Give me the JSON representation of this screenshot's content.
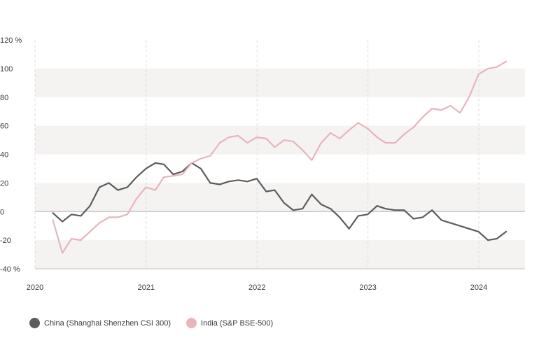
{
  "chart_data": {
    "type": "line",
    "y_unit": "%",
    "ylim": [
      -40,
      120
    ],
    "yticks": [
      -40,
      -20,
      0,
      20,
      40,
      60,
      80,
      100,
      120
    ],
    "ytick_labels": [
      "-40 %",
      "-20",
      "0",
      "20",
      "40",
      "60",
      "80",
      "100",
      "120 %"
    ],
    "xlim": [
      "2020-01-01",
      "2024-06-01"
    ],
    "xticks": [
      "2020-01-01",
      "2021-01-01",
      "2022-01-01",
      "2023-01-01",
      "2024-01-01"
    ],
    "xtick_labels": [
      "2020",
      "2021",
      "2022",
      "2023",
      "2024"
    ],
    "grid": "alternating horizontal bands, dashed vertical lines at years",
    "legend_position": "bottom-left",
    "colors": {
      "band": "#f4f3f1",
      "zero_line": "#c9c6c2",
      "year_grid": "#dddddd"
    },
    "x": [
      "2020-02-29",
      "2020-03-31",
      "2020-04-30",
      "2020-05-31",
      "2020-06-30",
      "2020-07-31",
      "2020-08-31",
      "2020-09-30",
      "2020-10-31",
      "2020-11-30",
      "2020-12-31",
      "2021-01-31",
      "2021-02-28",
      "2021-03-31",
      "2021-04-30",
      "2021-05-31",
      "2021-06-30",
      "2021-07-31",
      "2021-08-31",
      "2021-09-30",
      "2021-10-31",
      "2021-11-30",
      "2021-12-31",
      "2022-01-31",
      "2022-02-28",
      "2022-03-31",
      "2022-04-30",
      "2022-05-31",
      "2022-06-30",
      "2022-07-31",
      "2022-08-31",
      "2022-09-30",
      "2022-10-31",
      "2022-11-30",
      "2022-12-31",
      "2023-01-31",
      "2023-02-28",
      "2023-03-31",
      "2023-04-30",
      "2023-05-31",
      "2023-06-30",
      "2023-07-31",
      "2023-08-31",
      "2023-09-30",
      "2023-10-31",
      "2023-11-30",
      "2023-12-31",
      "2024-01-31",
      "2024-02-29",
      "2024-03-31"
    ],
    "series": [
      {
        "name": "China (Shanghai Shenzhen CSI 300)",
        "color": "#5c5c5c",
        "values": [
          -1,
          -7,
          -2,
          -3,
          4,
          17,
          20,
          15,
          17,
          24,
          30,
          34,
          33,
          26,
          28,
          34,
          30,
          20,
          19,
          21,
          22,
          21,
          23,
          14,
          15,
          6,
          1,
          2,
          12,
          5,
          2,
          -4,
          -12,
          -3,
          -2,
          4,
          2,
          1,
          1,
          -5,
          -4,
          1,
          -6,
          -8,
          -10,
          -12,
          -14,
          -20,
          -19,
          -14
        ]
      },
      {
        "name": "India (S&P BSE-500)",
        "color": "#e8b4bd",
        "values": [
          -6,
          -29,
          -19,
          -20,
          -14,
          -8,
          -4,
          -4,
          -2,
          9,
          17,
          15,
          24,
          25,
          26,
          34,
          37,
          39,
          48,
          52,
          53,
          48,
          52,
          51,
          45,
          50,
          49,
          43,
          36,
          48,
          55,
          51,
          57,
          62,
          58,
          52,
          48,
          48,
          54,
          59,
          66,
          72,
          71,
          74,
          69,
          80,
          96,
          100,
          101,
          105
        ]
      }
    ]
  }
}
